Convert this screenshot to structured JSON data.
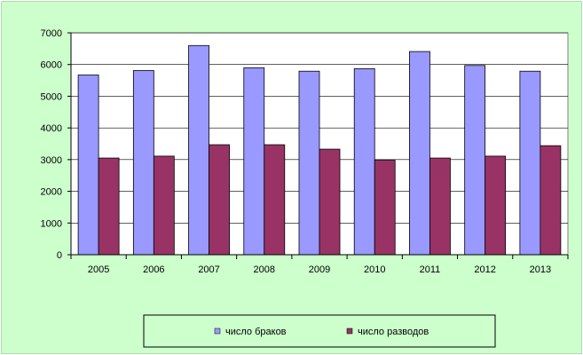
{
  "chart_data": {
    "type": "bar",
    "title": "",
    "xlabel": "",
    "ylabel": "",
    "categories": [
      "2005",
      "2006",
      "2007",
      "2008",
      "2009",
      "2010",
      "2011",
      "2012",
      "2013"
    ],
    "series": [
      {
        "name": "число браков",
        "values": [
          5670,
          5810,
          6600,
          5900,
          5790,
          5870,
          6410,
          5970,
          5790
        ],
        "color": "#9999ff"
      },
      {
        "name": "число разводов",
        "values": [
          3050,
          3110,
          3470,
          3470,
          3330,
          2980,
          3050,
          3110,
          3440
        ],
        "color": "#993366"
      }
    ],
    "ylim": [
      0,
      7000
    ],
    "yticks": [
      "0",
      "1000",
      "2000",
      "3000",
      "4000",
      "5000",
      "6000",
      "7000"
    ],
    "grid": true,
    "legend_position": "bottom",
    "background": "#ccffcc",
    "plot_background": "#ffffff"
  }
}
